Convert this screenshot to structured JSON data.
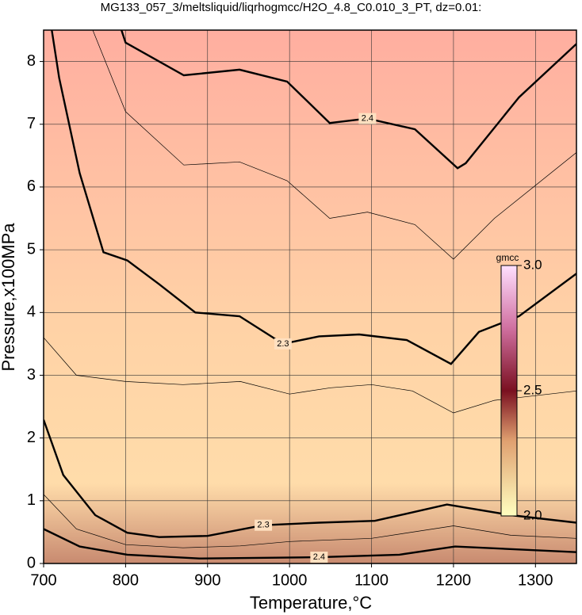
{
  "chart_data": {
    "type": "contour",
    "title": "MG133_057_3/meltsliquid/liqrhogmcc/H2O_4.8_C0.010_3_PT, dz=0.01:",
    "x_label": "Temperature,°C",
    "y_label": "Pressure,x100MPa",
    "xlim": [
      700,
      1350
    ],
    "ylim": [
      0,
      8.5
    ],
    "xticks": [
      700,
      800,
      900,
      1000,
      1100,
      1200,
      1300
    ],
    "yticks": [
      0,
      1,
      2,
      3,
      4,
      5,
      6,
      7,
      8
    ],
    "grid": true,
    "contours": [
      {
        "level": 2.4,
        "bold": true,
        "x": [
          795,
          800,
          871,
          939,
          997,
          1049,
          1095,
          1153,
          1205,
          1215,
          1280,
          1350
        ],
        "y": [
          8.5,
          8.3,
          7.78,
          7.87,
          7.68,
          7.02,
          7.09,
          6.92,
          6.3,
          6.38,
          7.43,
          8.28
        ]
      },
      {
        "level": 2.35,
        "bold": false,
        "x": [
          760,
          800,
          871,
          939,
          997,
          1049,
          1095,
          1153,
          1200,
          1250,
          1350
        ],
        "y": [
          8.5,
          7.2,
          6.35,
          6.4,
          6.1,
          5.5,
          5.6,
          5.4,
          4.85,
          5.5,
          6.55
        ]
      },
      {
        "level": 2.3,
        "bold": true,
        "x": [
          710,
          719,
          744,
          773,
          802,
          841,
          885,
          939,
          992,
          1036,
          1085,
          1143,
          1197,
          1231,
          1280,
          1350
        ],
        "y": [
          8.5,
          7.74,
          6.22,
          4.96,
          4.83,
          4.45,
          4.0,
          3.94,
          3.5,
          3.62,
          3.65,
          3.56,
          3.18,
          3.69,
          3.94,
          4.62
        ]
      },
      {
        "level": 2.26,
        "bold": false,
        "x": [
          700,
          740,
          800,
          870,
          940,
          1000,
          1050,
          1100,
          1150,
          1200,
          1250,
          1350
        ],
        "y": [
          3.6,
          3.0,
          2.9,
          2.85,
          2.9,
          2.7,
          2.8,
          2.85,
          2.75,
          2.4,
          2.6,
          2.75
        ]
      },
      {
        "level": 2.3,
        "bold": true,
        "x": [
          700,
          724,
          763,
          802,
          841,
          900,
          968,
          1036,
          1104,
          1192,
          1270,
          1350
        ],
        "y": [
          2.29,
          1.41,
          0.77,
          0.49,
          0.42,
          0.44,
          0.61,
          0.65,
          0.68,
          0.94,
          0.77,
          0.65
        ]
      },
      {
        "level": 2.35,
        "bold": false,
        "x": [
          700,
          740,
          800,
          870,
          940,
          1000,
          1100,
          1200,
          1270,
          1350
        ],
        "y": [
          1.1,
          0.55,
          0.3,
          0.25,
          0.28,
          0.35,
          0.4,
          0.6,
          0.45,
          0.4
        ]
      },
      {
        "level": 2.4,
        "bold": true,
        "x": [
          700,
          744,
          802,
          890,
          1036,
          1134,
          1202,
          1350
        ],
        "y": [
          0.55,
          0.27,
          0.14,
          0.08,
          0.1,
          0.14,
          0.27,
          0.18
        ]
      }
    ],
    "colorbar": {
      "label": "gmcc",
      "lim": [
        2.0,
        3.0
      ],
      "ticks": [
        {
          "value": 2,
          "label": "2.0"
        },
        {
          "value": 2.5,
          "label": "2.5"
        },
        {
          "value": 3,
          "label": "3.0"
        }
      ]
    }
  }
}
